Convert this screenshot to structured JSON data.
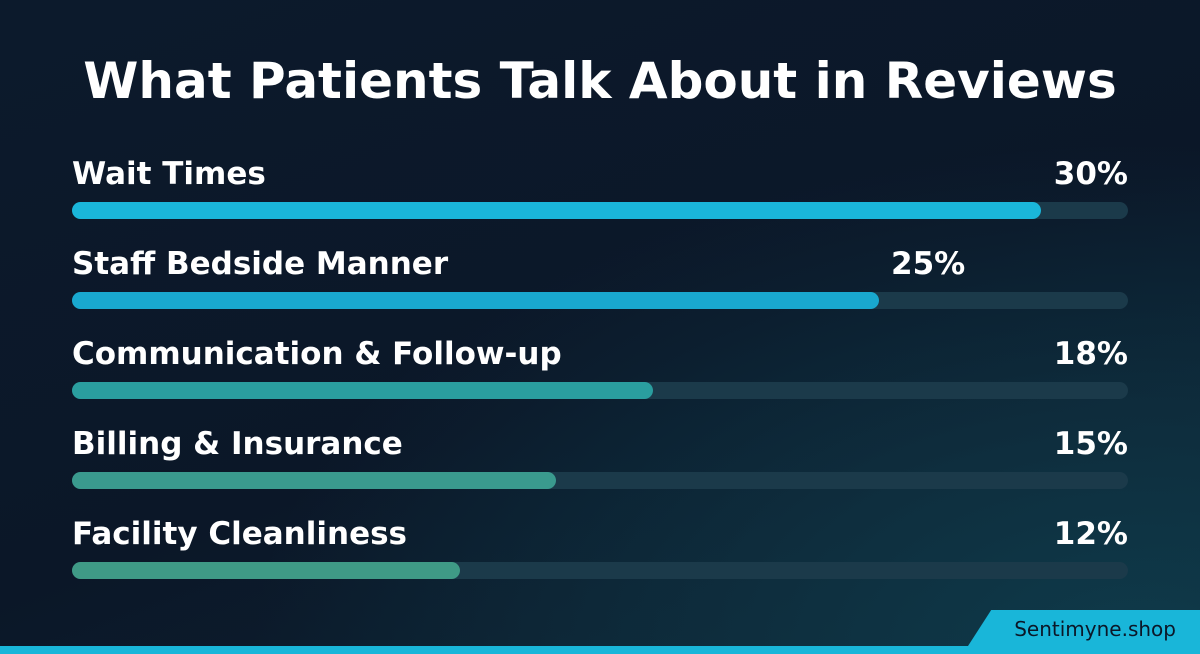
{
  "chart_data": {
    "type": "bar",
    "orientation": "horizontal",
    "title": "What Patients Talk About in Reviews",
    "categories": [
      "Wait Times",
      "Staff Bedside Manner",
      "Communication & Follow-up",
      "Billing & Insurance",
      "Facility Cleanliness"
    ],
    "values": [
      30,
      25,
      18,
      15,
      12
    ],
    "value_labels": [
      "30%",
      "25%",
      "18%",
      "15%",
      "12%"
    ],
    "unit": "%",
    "xlim": [
      0,
      32.7
    ],
    "grid": false,
    "legend": "none",
    "colors": [
      "#1ab6da",
      "#19a8cf",
      "#2a9e9f",
      "#3a9a8e",
      "#3f9a86"
    ],
    "track_color": "#1b3a4a"
  },
  "brand": {
    "label": "Sentimyne.shop",
    "color": "#19b6d9"
  }
}
